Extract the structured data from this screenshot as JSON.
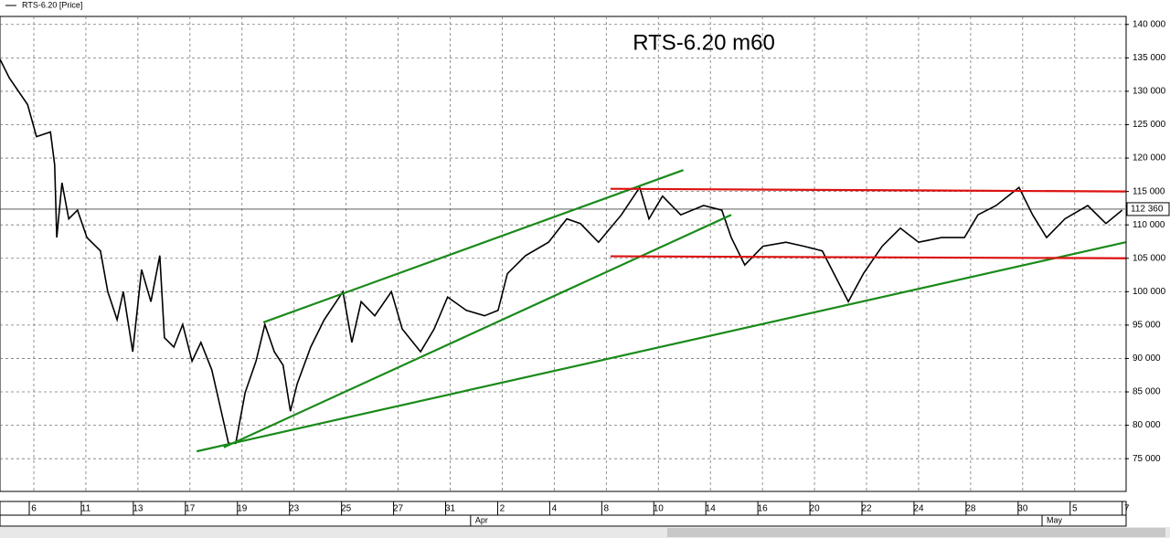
{
  "chart_data": {
    "type": "line",
    "title": "RTS-6.20 m60",
    "legend": "RTS-6.20 [Price]",
    "xlim": [
      -6.5,
      209.7
    ],
    "ylim": [
      70100,
      141200
    ],
    "grid": true,
    "xticks": [
      {
        "value": 0,
        "label": "6"
      },
      {
        "value": 10,
        "label": "11"
      },
      {
        "value": 20,
        "label": "13"
      },
      {
        "value": 30,
        "label": "17"
      },
      {
        "value": 40,
        "label": "19"
      },
      {
        "value": 50,
        "label": "23"
      },
      {
        "value": 60,
        "label": "25"
      },
      {
        "value": 70,
        "label": "27"
      },
      {
        "value": 80,
        "label": "31"
      },
      {
        "value": 90,
        "label": "2"
      },
      {
        "value": 100,
        "label": "4"
      },
      {
        "value": 110,
        "label": "8"
      },
      {
        "value": 120,
        "label": "10"
      },
      {
        "value": 130,
        "label": "14"
      },
      {
        "value": 140,
        "label": "16"
      },
      {
        "value": 150,
        "label": "20"
      },
      {
        "value": 160,
        "label": "22"
      },
      {
        "value": 170,
        "label": "24"
      },
      {
        "value": 180,
        "label": "28"
      },
      {
        "value": 190,
        "label": "30"
      },
      {
        "value": 200,
        "label": "5"
      },
      {
        "value": 210,
        "label": "7"
      }
    ],
    "months": [
      {
        "value": 84.8,
        "label": "Apr"
      },
      {
        "value": 194.6,
        "label": "May"
      }
    ],
    "yticks": [
      {
        "value": 140000,
        "label": "140 000"
      },
      {
        "value": 135000,
        "label": "135 000"
      },
      {
        "value": 130000,
        "label": "130 000"
      },
      {
        "value": 125000,
        "label": "125 000"
      },
      {
        "value": 120000,
        "label": "120 000"
      },
      {
        "value": 115000,
        "label": "115 000"
      },
      {
        "value": 110000,
        "label": "110 000"
      },
      {
        "value": 105000,
        "label": "105 000"
      },
      {
        "value": 100000,
        "label": "100 000"
      },
      {
        "value": 95000,
        "label": "95 000"
      },
      {
        "value": 90000,
        "label": "90 000"
      },
      {
        "value": 85000,
        "label": "85 000"
      },
      {
        "value": 80000,
        "label": "80 000"
      },
      {
        "value": 75000,
        "label": "75 000"
      }
    ],
    "last_price": {
      "value": 112360,
      "label": "112 360"
    },
    "series": [
      {
        "name": "RTS-6.20",
        "color": "#000000",
        "x": [
          -6.5,
          -4.7,
          -1.2,
          0.5,
          3.2,
          4.0,
          4.4,
          5.4,
          6.7,
          8.4,
          10.2,
          12.8,
          14.2,
          16.0,
          17.2,
          19.0,
          20.7,
          22.5,
          24.2,
          25.1,
          26.9,
          28.6,
          30.4,
          32.1,
          34.2,
          35.6,
          37.4,
          38.8,
          40.6,
          42.7,
          44.4,
          46.2,
          47.9,
          49.3,
          50.6,
          53.2,
          55.8,
          59.4,
          61.1,
          62.9,
          65.5,
          68.7,
          70.8,
          74.3,
          76.9,
          79.5,
          83.1,
          86.6,
          89.2,
          91.0,
          94.5,
          98.9,
          102.4,
          105.0,
          108.5,
          112.9,
          116.4,
          118.2,
          120.8,
          124.3,
          128.7,
          132.2,
          134.0,
          136.6,
          140.1,
          144.5,
          148.0,
          151.5,
          154.2,
          156.5,
          159.4,
          163.0,
          166.5,
          170.0,
          174.4,
          178.8,
          181.4,
          184.9,
          189.3,
          191.9,
          194.6,
          198.1,
          202.5,
          206.0,
          209.1
        ],
        "values": [
          134800,
          132000,
          128000,
          123200,
          123900,
          119000,
          108100,
          116300,
          110900,
          112200,
          108100,
          106100,
          100000,
          95800,
          100000,
          91000,
          103300,
          98500,
          105400,
          93100,
          91700,
          95100,
          89600,
          92400,
          88300,
          83500,
          77300,
          77300,
          84900,
          89600,
          95100,
          91000,
          89000,
          82100,
          86200,
          91700,
          95800,
          100000,
          92400,
          98500,
          96400,
          100000,
          94400,
          91000,
          94400,
          99200,
          97200,
          96400,
          97200,
          102700,
          105400,
          107400,
          110900,
          110200,
          107400,
          111500,
          115600,
          110900,
          114300,
          111500,
          112900,
          112200,
          108100,
          104000,
          106800,
          107400,
          106800,
          106100,
          102000,
          98500,
          102700,
          106800,
          109500,
          107400,
          108100,
          108100,
          111500,
          112900,
          115600,
          111500,
          108100,
          110900,
          112900,
          110200,
          112200
        ]
      }
    ],
    "trendlines": [
      {
        "color": "#1a8a1a",
        "x": [
          44.1,
          124.8
        ],
        "y": [
          95400,
          118200
        ]
      },
      {
        "color": "#1a8a1a",
        "x": [
          36.5,
          134.0
        ],
        "y": [
          76700,
          111500
        ]
      },
      {
        "color": "#1a8a1a",
        "x": [
          31.3,
          209.8
        ],
        "y": [
          76100,
          107400
        ]
      },
      {
        "color": "#dd1111",
        "x": [
          110.8,
          209.8
        ],
        "y": [
          115400,
          115000
        ]
      },
      {
        "color": "#dd1111",
        "x": [
          110.8,
          209.8
        ],
        "y": [
          105300,
          105000
        ]
      }
    ]
  }
}
